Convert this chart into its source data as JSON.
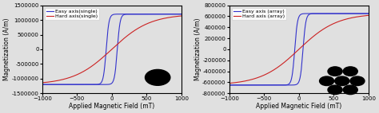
{
  "plot1": {
    "ylabel": "Magnetization (A/m)",
    "xlabel": "Applied Magnetic Field (mT)",
    "xlim": [
      -1000,
      1000
    ],
    "ylim": [
      -1500000,
      1500000
    ],
    "yticks": [
      -1500000,
      -1000000,
      -500000,
      0,
      500000,
      1000000,
      1500000
    ],
    "xticks": [
      -1000,
      -500,
      0,
      500,
      1000
    ],
    "easy_color": "#3333cc",
    "hard_color": "#cc2222",
    "easy_label": "Easy axis(single)",
    "hard_label": "Hard axis(single)",
    "easy_sat": 1200000,
    "easy_coercivity": 80,
    "hard_slope": 1200000,
    "hard_scale": 0.55
  },
  "plot2": {
    "ylabel": "Magnetization (A/m)",
    "xlabel": "Applied Magnetic Field (mT)",
    "xlim": [
      -1000,
      1000
    ],
    "ylim": [
      -800000,
      800000
    ],
    "yticks": [
      -800000,
      -600000,
      -400000,
      -200000,
      0,
      200000,
      400000,
      600000,
      800000
    ],
    "xticks": [
      -1000,
      -500,
      0,
      500,
      1000
    ],
    "easy_color": "#3333cc",
    "hard_color": "#cc2222",
    "easy_label": "Easy axis (array)",
    "hard_label": "Hard axis (array)",
    "easy_sat": 650000,
    "easy_coercivity": 60,
    "hard_slope": 650000,
    "hard_scale": 0.55
  },
  "bg_color": "#e0e0e0",
  "font_size": 5.5
}
